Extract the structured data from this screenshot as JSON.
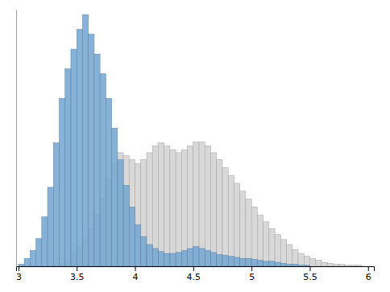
{
  "chart_data": {
    "type": "histogram",
    "bins": [
      3.0,
      3.05,
      3.1,
      3.15,
      3.2,
      3.25,
      3.3,
      3.35,
      3.4,
      3.45,
      3.5,
      3.55,
      3.6,
      3.65,
      3.7,
      3.75,
      3.8,
      3.85,
      3.9,
      3.95,
      4.0,
      4.05,
      4.1,
      4.15,
      4.2,
      4.25,
      4.3,
      4.35,
      4.4,
      4.45,
      4.5,
      4.55,
      4.6,
      4.65,
      4.7,
      4.75,
      4.8,
      4.85,
      4.9,
      4.95,
      5.0,
      5.05,
      5.1,
      5.15,
      5.2,
      5.25,
      5.3,
      5.35,
      5.4,
      5.45,
      5.5,
      5.55,
      5.6,
      5.65,
      5.7,
      5.75,
      5.8,
      5.85,
      5.9,
      5.95,
      6.0
    ],
    "series": [
      {
        "color": "#d8d8d8",
        "values": [
          0,
          0,
          0,
          0,
          0,
          0,
          1,
          3,
          7,
          14,
          20,
          28,
          38,
          52,
          68,
          88,
          105,
          115,
          112,
          108,
          104,
          108,
          115,
          122,
          125,
          122,
          118,
          115,
          118,
          122,
          126,
          126,
          122,
          115,
          108,
          100,
          92,
          84,
          76,
          68,
          60,
          52,
          45,
          38,
          32,
          27,
          22,
          17,
          13,
          10,
          8,
          6,
          4,
          3,
          2,
          2,
          1,
          1,
          1,
          0
        ]
      },
      {
        "color": "#7aaad4",
        "values": [
          2,
          8,
          16,
          28,
          50,
          80,
          125,
          170,
          200,
          220,
          240,
          255,
          235,
          215,
          195,
          170,
          140,
          108,
          82,
          60,
          42,
          30,
          22,
          18,
          15,
          13,
          13,
          14,
          16,
          18,
          20,
          18,
          16,
          14,
          12,
          11,
          10,
          9,
          8,
          8,
          7,
          6,
          5,
          5,
          4,
          3,
          2,
          2,
          1,
          1,
          0,
          0,
          0,
          0,
          0,
          0,
          0,
          0,
          0,
          0
        ]
      }
    ],
    "xlim": [
      2.98,
      6.05
    ],
    "xticks": [
      3.0,
      3.5,
      4.0,
      4.5,
      5.0,
      5.5,
      6.0
    ],
    "ylim": [
      0,
      260
    ],
    "tick_labels": "x",
    "grid": false
  }
}
